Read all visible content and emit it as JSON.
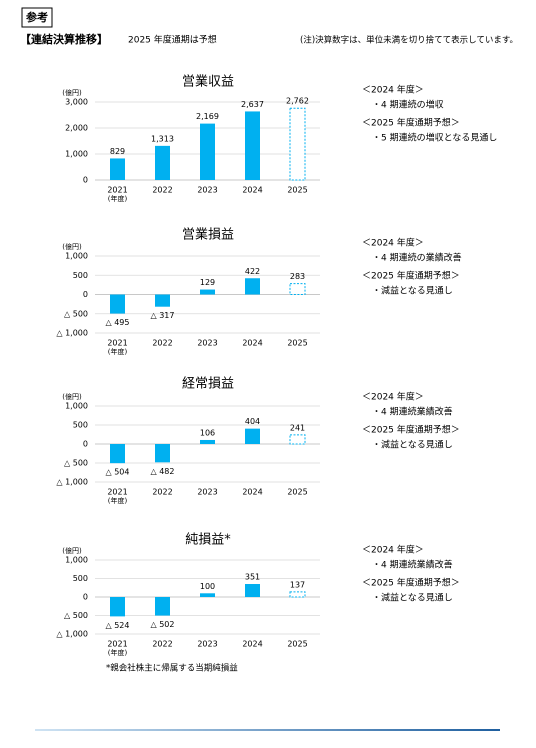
{
  "header": {
    "tag": "参考",
    "title": "【連結決算推移】",
    "subtitle": "2025 年度通期は予想",
    "note": "(注)決算数字は、単位未満を切り捨てて表示しています。"
  },
  "footnote": "*親会社株主に帰属する当期純損益",
  "commentary": [
    [
      {
        "heading": "＜2024 年度＞",
        "item": "・4 期連続の増収"
      },
      {
        "heading": "＜2025 年度通期予想＞",
        "item": "・5 期連続の増収となる見通し"
      }
    ],
    [
      {
        "heading": "＜2024 年度＞",
        "item": "・4 期連続の業績改善"
      },
      {
        "heading": "＜2025 年度通期予想＞",
        "item": "・減益となる見通し"
      }
    ],
    [
      {
        "heading": "＜2024 年度＞",
        "item": "・4 期連続業績改善"
      },
      {
        "heading": "＜2025 年度通期予想＞",
        "item": "・減益となる見通し"
      }
    ],
    [
      {
        "heading": "＜2024 年度＞",
        "item": "・4 期連続業績改善"
      },
      {
        "heading": "＜2025 年度通期予想＞",
        "item": "・減益となる見通し"
      }
    ]
  ],
  "chart_data": [
    {
      "type": "bar",
      "title": "営業収益",
      "y_label": "(億円)",
      "x_unit": "(年度)",
      "categories": [
        "2021",
        "2022",
        "2023",
        "2024",
        "2025"
      ],
      "values": [
        829,
        1313,
        2169,
        2637,
        2762
      ],
      "value_labels": [
        "829",
        "1,313",
        "2,169",
        "2,637",
        "2,762"
      ],
      "bar_styles": [
        "fill",
        "fill",
        "fill",
        "fill",
        "outline"
      ],
      "color": "#00b0f0",
      "ylim": [
        0,
        3000
      ],
      "yticks": [
        0,
        {
          "value": 1000,
          "label": "1,000"
        },
        {
          "value": 2000,
          "label": "2,000"
        },
        {
          "value": 3000,
          "label": "3,000"
        }
      ],
      "grid": true
    },
    {
      "type": "bar",
      "title": "営業損益",
      "y_label": "(億円)",
      "x_unit": "(年度)",
      "categories": [
        "2021",
        "2022",
        "2023",
        "2024",
        "2025"
      ],
      "values": [
        -495,
        -317,
        129,
        422,
        283
      ],
      "value_labels": [
        "△ 495",
        "△ 317",
        "129",
        "422",
        "283"
      ],
      "bar_styles": [
        "fill",
        "fill",
        "fill",
        "fill",
        "outline"
      ],
      "color": "#00b0f0",
      "ylim": [
        -1000,
        1000
      ],
      "yticks": [
        {
          "value": -1000,
          "label": "△ 1,000"
        },
        {
          "value": -500,
          "label": "△ 500"
        },
        0,
        500,
        {
          "value": 1000,
          "label": "1,000"
        }
      ],
      "grid": true
    },
    {
      "type": "bar",
      "title": "経常損益",
      "y_label": "(億円)",
      "x_unit": "(年度)",
      "categories": [
        "2021",
        "2022",
        "2023",
        "2024",
        "2025"
      ],
      "values": [
        -504,
        -482,
        106,
        404,
        241
      ],
      "value_labels": [
        "△ 504",
        "△ 482",
        "106",
        "404",
        "241"
      ],
      "bar_styles": [
        "fill",
        "fill",
        "fill",
        "fill",
        "outline"
      ],
      "color": "#00b0f0",
      "ylim": [
        -1000,
        1000
      ],
      "yticks": [
        {
          "value": -1000,
          "label": "△ 1,000"
        },
        {
          "value": -500,
          "label": "△ 500"
        },
        0,
        500,
        {
          "value": 1000,
          "label": "1,000"
        }
      ],
      "grid": true
    },
    {
      "type": "bar",
      "title": "純損益*",
      "y_label": "(億円)",
      "x_unit": "(年度)",
      "categories": [
        "2021",
        "2022",
        "2023",
        "2024",
        "2025"
      ],
      "values": [
        -524,
        -502,
        100,
        351,
        137
      ],
      "value_labels": [
        "△ 524",
        "△ 502",
        "100",
        "351",
        "137"
      ],
      "bar_styles": [
        "fill",
        "fill",
        "fill",
        "fill",
        "outline"
      ],
      "color": "#00b0f0",
      "ylim": [
        -1000,
        1000
      ],
      "yticks": [
        {
          "value": -1000,
          "label": "△ 1,000"
        },
        {
          "value": -500,
          "label": "△ 500"
        },
        0,
        500,
        {
          "value": 1000,
          "label": "1,000"
        }
      ],
      "grid": true
    }
  ]
}
